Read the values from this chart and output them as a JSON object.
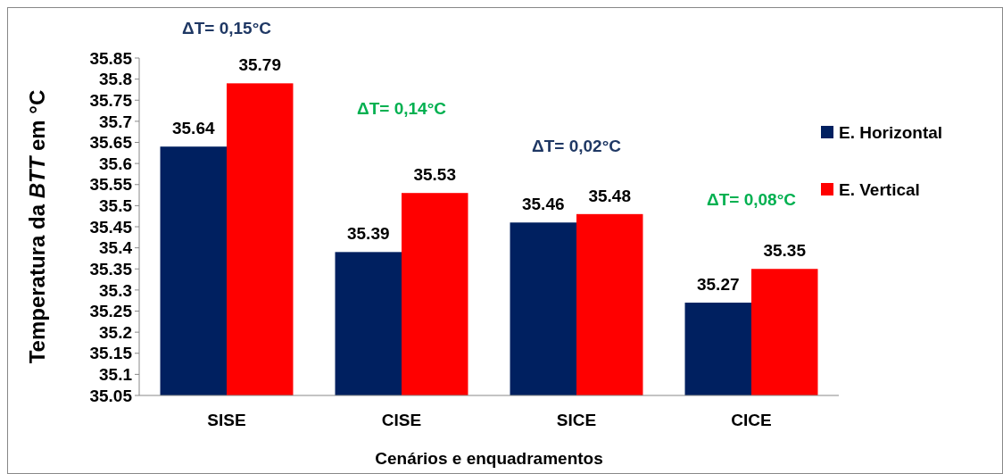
{
  "chart_data": {
    "type": "bar",
    "xlabel": "Cenários e enquadramentos",
    "ylabel": "Temperatura da BTT em  °C",
    "categories": [
      "SISE",
      "CISE",
      "SICE",
      "CICE"
    ],
    "series": [
      {
        "name": "E. Horizontal",
        "color": "#002060",
        "values": [
          35.64,
          35.39,
          35.46,
          35.27
        ]
      },
      {
        "name": "E. Vertical",
        "color": "#ff0000",
        "values": [
          35.79,
          35.53,
          35.48,
          35.35
        ]
      }
    ],
    "ylim": [
      35.05,
      35.85
    ],
    "yticks": [
      35.05,
      35.1,
      35.15,
      35.2,
      35.25,
      35.3,
      35.35,
      35.4,
      35.45,
      35.5,
      35.55,
      35.6,
      35.65,
      35.7,
      35.75,
      35.8,
      35.85
    ],
    "data_labels": true,
    "legend": "right",
    "grid": false,
    "annotations": [
      "ΔT= 0,15°C",
      "ΔT= 0,14°C",
      "ΔT= 0,02°C",
      "ΔT= 0,08°C"
    ]
  }
}
